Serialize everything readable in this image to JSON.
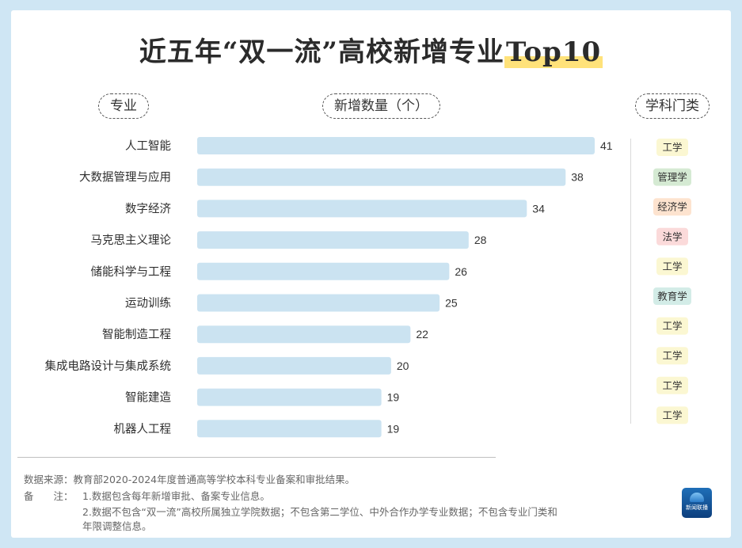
{
  "title": {
    "main": "近五年“双一流”高校新增专业",
    "highlight": "Top10"
  },
  "headers": {
    "major": "专业",
    "count": "新增数量（个）",
    "category": "学科门类"
  },
  "chart_data": {
    "type": "bar",
    "orientation": "horizontal",
    "categories": [
      "人工智能",
      "大数据管理与应用",
      "数字经济",
      "马克思主义理论",
      "储能科学与工程",
      "运动训练",
      "智能制造工程",
      "集成电路设计与集成系统",
      "智能建造",
      "机器人工程"
    ],
    "values": [
      41,
      38,
      34,
      28,
      26,
      25,
      22,
      20,
      19,
      19
    ],
    "xlim": [
      0,
      41
    ],
    "bar_color": "#cbe3f1",
    "data_labels": true,
    "grid": false
  },
  "disciplines": [
    {
      "label": "工学",
      "color": "#fbf7d2"
    },
    {
      "label": "管理学",
      "color": "#d5ead3"
    },
    {
      "label": "经济学",
      "color": "#fde3cf"
    },
    {
      "label": "法学",
      "color": "#fbdada"
    },
    {
      "label": "工学",
      "color": "#fbf7d2"
    },
    {
      "label": "教育学",
      "color": "#d3ece7"
    },
    {
      "label": "工学",
      "color": "#fbf7d2"
    },
    {
      "label": "工学",
      "color": "#fbf7d2"
    },
    {
      "label": "工学",
      "color": "#fbf7d2"
    },
    {
      "label": "工学",
      "color": "#fbf7d2"
    }
  ],
  "footer": {
    "source": "数据来源：教育部2020-2024年度普通高等学校本科专业备案和审批结果。",
    "note_label": "备　　注：",
    "note1": "1.数据包含每年新增审批、备案专业信息。",
    "note2a": "2.数据不包含“双一流”高校所属独立学院数据；不包含第二学位、中外合作办学专业数据；不包含专业门类和",
    "note2b": "年限调整信息。"
  },
  "logo": {
    "icon": "news-globe-icon",
    "text": "新闻联播"
  }
}
